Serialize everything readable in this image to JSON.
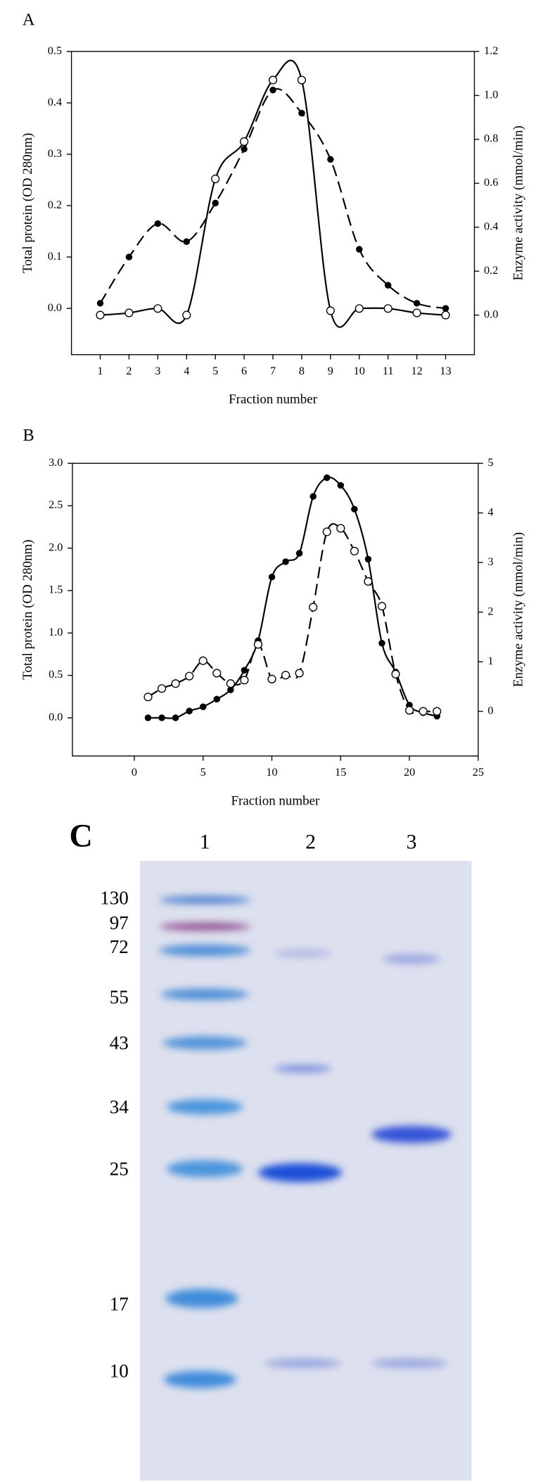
{
  "chart_data": [
    {
      "type": "line",
      "label": "A",
      "xlabel": "Fraction number",
      "ylabel": "Total protein (OD 280nm)",
      "y2label": "Enzyme activity (mmol/min)",
      "x": [
        1,
        2,
        3,
        4,
        5,
        6,
        7,
        8,
        9,
        10,
        11,
        12,
        13
      ],
      "xlim": [
        0,
        14
      ],
      "xticks": [
        1,
        2,
        3,
        4,
        5,
        6,
        7,
        8,
        9,
        10,
        11,
        12,
        13
      ],
      "ylim": [
        -0.09,
        0.5
      ],
      "yticks": [
        {
          "value": 0,
          "label": "0.0"
        },
        0.1,
        0.2,
        0.3,
        0.4,
        0.5
      ],
      "y2lim": [
        -0.18,
        1.2
      ],
      "y2ticks": [
        {
          "value": 0,
          "label": "0.0"
        },
        0.2,
        0.4,
        0.6,
        0.8,
        {
          "value": 1,
          "label": "1.0"
        },
        1.2
      ],
      "series": [
        {
          "marker": "filled",
          "line": "dashed",
          "color": "#000000",
          "values": [
            0.01,
            0.1,
            0.165,
            0.13,
            0.205,
            0.31,
            0.425,
            0.38,
            0.29,
            0.115,
            0.045,
            0.01,
            0.0
          ]
        },
        {
          "marker": "open",
          "line": "solid",
          "color": "#000000",
          "axis": "y2",
          "values": [
            0.0,
            0.01,
            0.03,
            0.0,
            0.62,
            0.79,
            1.07,
            1.07,
            0.02,
            0.03,
            0.03,
            0.01,
            0.0
          ]
        }
      ]
    },
    {
      "type": "line",
      "label": "B",
      "xlabel": "Fraction number",
      "ylabel": "Total protein (OD 280nm)",
      "y2label": "Enzyme activity (mmol/min)",
      "x": [
        1,
        2,
        3,
        4,
        5,
        6,
        7,
        8,
        9,
        10,
        11,
        12,
        13,
        14,
        15,
        16,
        17,
        18,
        19,
        20,
        21,
        22
      ],
      "xlim": [
        -4.5,
        25
      ],
      "xticks": [
        0,
        5,
        10,
        15,
        20,
        25
      ],
      "ylim": [
        -0.45,
        3.0
      ],
      "yticks": [
        {
          "value": 0,
          "label": "0.0"
        },
        0.5,
        {
          "value": 1,
          "label": "1.0"
        },
        1.5,
        {
          "value": 2,
          "label": "2.0"
        },
        2.5,
        {
          "value": 3,
          "label": "3.0"
        }
      ],
      "y2lim": [
        -0.9,
        5
      ],
      "y2ticks": [
        0,
        1,
        2,
        3,
        4,
        5
      ],
      "series": [
        {
          "marker": "filled",
          "line": "solid",
          "color": "#000000",
          "values": [
            0,
            0,
            0,
            0.08,
            0.13,
            0.22,
            0.33,
            0.56,
            0.91,
            1.66,
            1.84,
            1.94,
            2.61,
            2.83,
            2.74,
            2.46,
            1.87,
            0.88,
            0.54,
            0.15,
            0.06,
            0.02
          ]
        },
        {
          "marker": "open",
          "line": "dashed",
          "color": "#000000",
          "axis": "y2",
          "values": [
            0.29,
            0.46,
            0.56,
            0.71,
            1.02,
            0.77,
            0.56,
            0.63,
            1.35,
            0.65,
            0.73,
            0.77,
            2.1,
            3.62,
            3.69,
            3.23,
            2.62,
            2.12,
            0.75,
            0.02,
            0,
            0
          ]
        }
      ]
    }
  ],
  "gel": {
    "panel_label": "C",
    "lanes": [
      "1",
      "2",
      "3"
    ],
    "markers": [
      130,
      97,
      72,
      55,
      43,
      34,
      25,
      17,
      10
    ]
  }
}
